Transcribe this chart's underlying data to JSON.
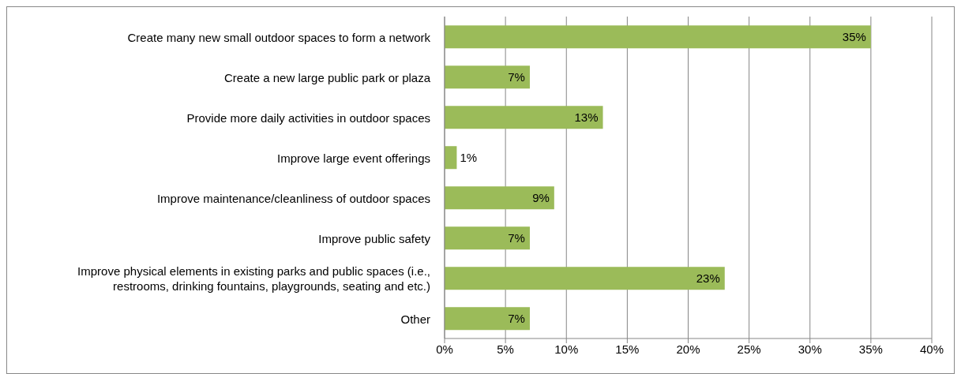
{
  "chart_data": {
    "type": "bar",
    "orientation": "horizontal",
    "categories": [
      "Create many new small outdoor spaces to form a network",
      "Create a new large public park or plaza",
      "Provide more daily activities in outdoor spaces",
      "Improve large event offerings",
      "Improve maintenance/cleanliness of outdoor spaces",
      "Improve public safety",
      "Improve physical elements in existing parks and public spaces (i.e., restrooms, drinking fountains, playgrounds, seating and etc.)",
      "Other"
    ],
    "values": [
      35,
      7,
      13,
      1,
      9,
      7,
      23,
      7
    ],
    "color": "#9bbb59",
    "xlim": [
      0,
      40
    ],
    "xticks": [
      {
        "value": 0,
        "label": "0%"
      },
      {
        "value": 5,
        "label": "5%"
      },
      {
        "value": 10,
        "label": "10%"
      },
      {
        "value": 15,
        "label": "15%"
      },
      {
        "value": 20,
        "label": "20%"
      },
      {
        "value": 25,
        "label": "25%"
      },
      {
        "value": 30,
        "label": "30%"
      },
      {
        "value": 35,
        "label": "35%"
      },
      {
        "value": 40,
        "label": "40%"
      }
    ],
    "grid": "x",
    "value_labels": [
      "35%",
      "7%",
      "13%",
      "1%",
      "9%",
      "7%",
      "23%",
      "7%"
    ]
  }
}
